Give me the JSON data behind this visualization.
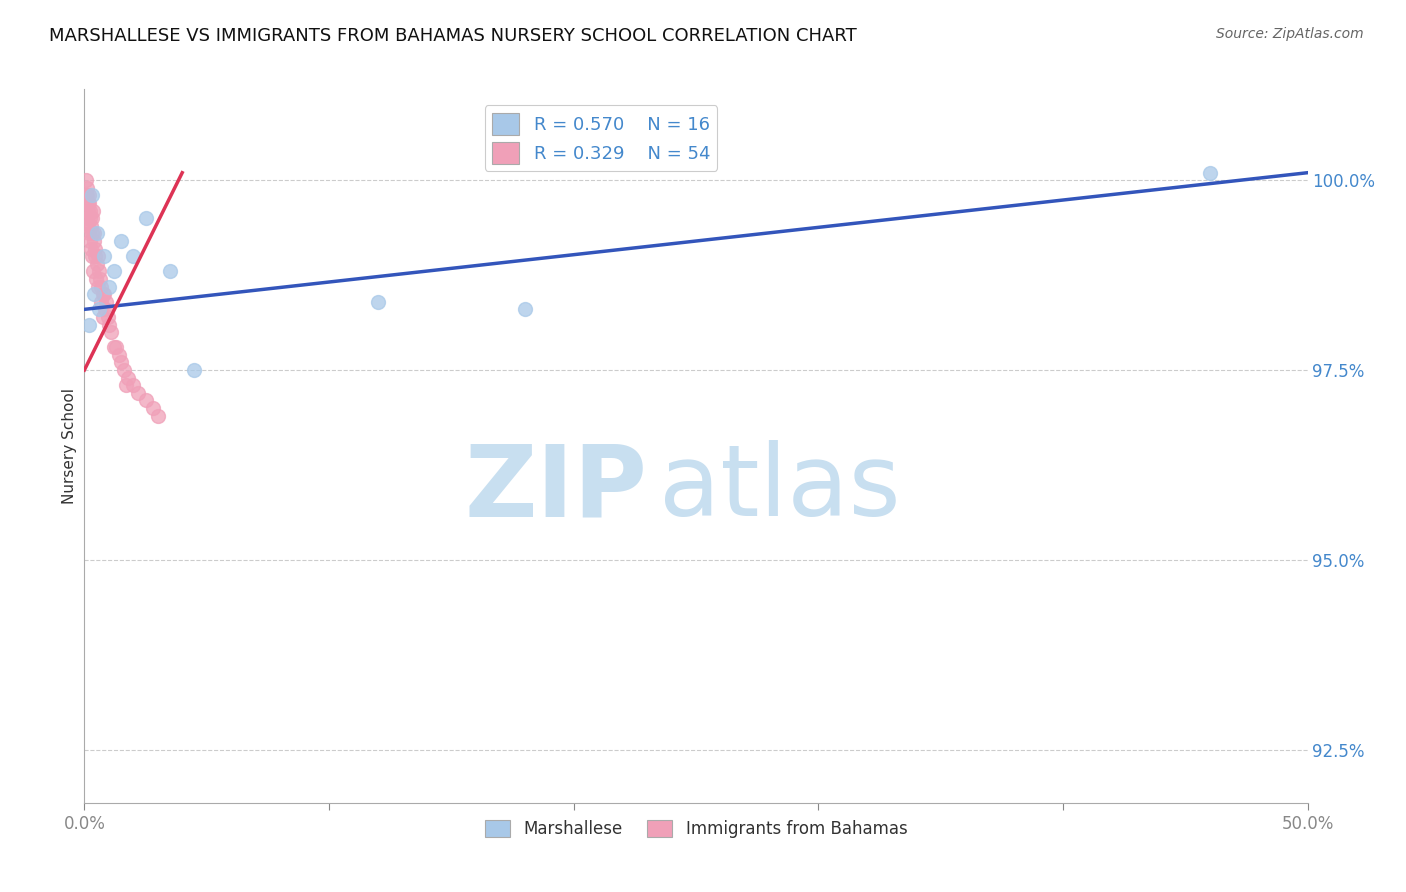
{
  "title": "MARSHALLESE VS IMMIGRANTS FROM BAHAMAS NURSERY SCHOOL CORRELATION CHART",
  "source": "Source: ZipAtlas.com",
  "ylabel": "Nursery School",
  "xlim": [
    0.0,
    50.0
  ],
  "ylim": [
    91.8,
    101.2
  ],
  "yticks": [
    92.5,
    95.0,
    97.5,
    100.0
  ],
  "ytick_labels": [
    "92.5%",
    "95.0%",
    "97.5%",
    "100.0%"
  ],
  "xtick_positions": [
    0,
    10,
    20,
    30,
    40,
    50
  ],
  "xtick_labels": [
    "0.0%",
    "",
    "",
    "",
    "",
    "50.0%"
  ],
  "blue_color": "#a8c8e8",
  "pink_color": "#f0a0b8",
  "blue_line_color": "#3355bb",
  "pink_line_color": "#dd3355",
  "legend_blue_R": "R = 0.570",
  "legend_blue_N": "N = 16",
  "legend_pink_R": "R = 0.329",
  "legend_pink_N": "N = 54",
  "blue_scatter_x": [
    0.3,
    0.5,
    0.8,
    1.2,
    1.5,
    2.0,
    2.5,
    0.4,
    0.6,
    1.0,
    3.5,
    0.2,
    4.5,
    12.0,
    18.0,
    46.0
  ],
  "blue_scatter_y": [
    99.8,
    99.3,
    99.0,
    98.8,
    99.2,
    99.0,
    99.5,
    98.5,
    98.3,
    98.6,
    98.8,
    98.1,
    97.5,
    98.4,
    98.3,
    100.1
  ],
  "pink_scatter_x": [
    0.05,
    0.08,
    0.1,
    0.12,
    0.15,
    0.15,
    0.18,
    0.2,
    0.22,
    0.25,
    0.28,
    0.3,
    0.32,
    0.35,
    0.38,
    0.4,
    0.42,
    0.45,
    0.5,
    0.55,
    0.6,
    0.65,
    0.7,
    0.75,
    0.8,
    0.85,
    0.9,
    0.95,
    1.0,
    1.1,
    1.2,
    1.3,
    1.4,
    1.5,
    1.6,
    1.8,
    2.0,
    2.2,
    0.07,
    0.11,
    0.16,
    0.19,
    0.23,
    0.27,
    0.33,
    0.37,
    0.47,
    0.57,
    0.67,
    0.77,
    1.7,
    2.5,
    3.0,
    2.8
  ],
  "pink_scatter_y": [
    100.0,
    99.8,
    99.8,
    99.9,
    99.7,
    99.6,
    99.8,
    99.7,
    99.5,
    99.6,
    99.4,
    99.5,
    99.3,
    99.6,
    99.2,
    99.3,
    99.1,
    99.0,
    98.9,
    99.0,
    98.8,
    98.7,
    98.6,
    98.5,
    98.5,
    98.3,
    98.4,
    98.2,
    98.1,
    98.0,
    97.8,
    97.8,
    97.7,
    97.6,
    97.5,
    97.4,
    97.3,
    97.2,
    99.7,
    99.5,
    99.4,
    99.3,
    99.2,
    99.1,
    99.0,
    98.8,
    98.7,
    98.6,
    98.4,
    98.2,
    97.3,
    97.1,
    96.9,
    97.0
  ],
  "pink_trendline_x": [
    0.0,
    4.0
  ],
  "pink_trendline_y": [
    97.5,
    100.1
  ],
  "blue_trendline_x": [
    0.0,
    50.0
  ],
  "blue_trendline_y": [
    98.3,
    100.1
  ],
  "watermark_zip": "ZIP",
  "watermark_atlas": "atlas",
  "watermark_color": "#c8dff0",
  "bg_color": "#ffffff",
  "title_fontsize": 13,
  "axis_label_color": "#4488cc",
  "grid_color": "#cccccc",
  "marker_size": 100
}
